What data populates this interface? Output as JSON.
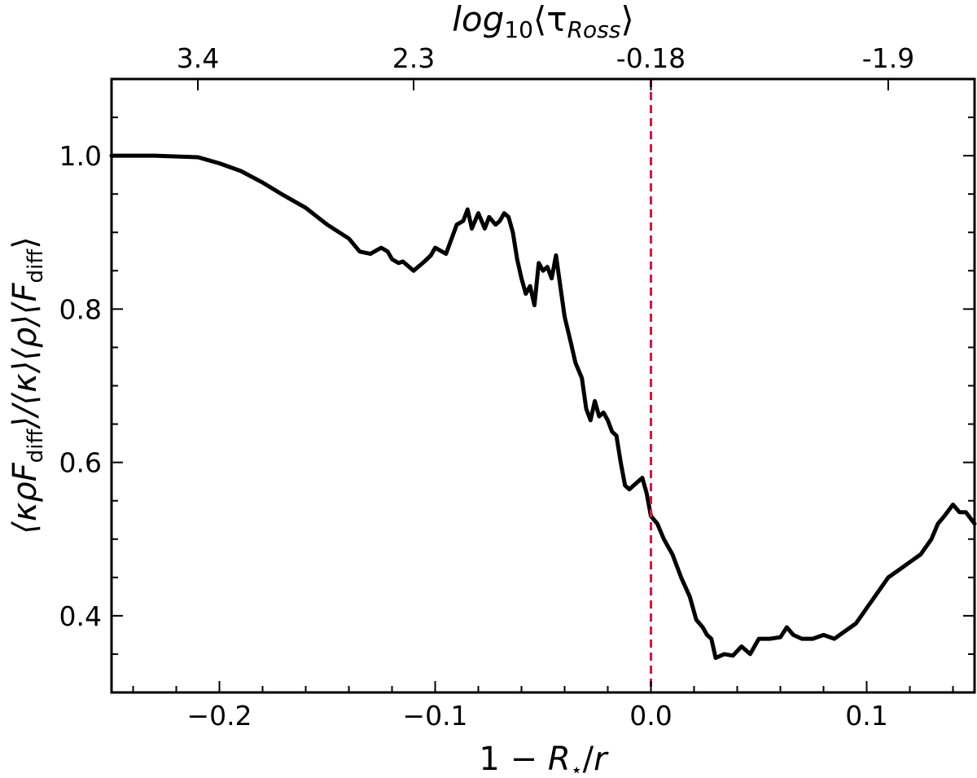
{
  "chart_data": {
    "type": "line",
    "xlabel": "1 − R⋆/r",
    "xlabel_parts": {
      "one": "1",
      "minus": "−",
      "r": "R",
      "star": "⋆",
      "slash": "/",
      "rr": "r"
    },
    "ylabel_parts": {
      "a": "⟨κρF",
      "b": "diff",
      "c": "⟩/⟨κ⟩⟨ρ⟩⟨F",
      "d": "diff",
      "e": "⟩"
    },
    "top_label_parts": {
      "a": "log",
      "b": "10",
      "c": "⟨τ",
      "d": "Ross",
      "e": "⟩"
    },
    "xlim": [
      -0.25,
      0.15
    ],
    "ylim": [
      0.3,
      1.1
    ],
    "x_ticks": [
      {
        "v": -0.2,
        "label": "−0.2"
      },
      {
        "v": -0.1,
        "label": "−0.1"
      },
      {
        "v": 0.0,
        "label": "0.0"
      },
      {
        "v": 0.1,
        "label": "0.1"
      }
    ],
    "y_ticks": [
      {
        "v": 0.4,
        "label": "0.4"
      },
      {
        "v": 0.6,
        "label": "0.6"
      },
      {
        "v": 0.8,
        "label": "0.8"
      },
      {
        "v": 1.0,
        "label": "1.0"
      }
    ],
    "top_ticks": [
      {
        "x": -0.21,
        "label": "3.4"
      },
      {
        "x": -0.11,
        "label": "2.3"
      },
      {
        "x": 0.0,
        "label": "-0.18"
      },
      {
        "x": 0.11,
        "label": "-1.9"
      }
    ],
    "vline": {
      "x": 0.0,
      "color": "#dc143c",
      "style": "dashed"
    },
    "line_color": "#000000",
    "series": [
      {
        "x": [
          -0.25,
          -0.23,
          -0.21,
          -0.2,
          -0.19,
          -0.18,
          -0.17,
          -0.16,
          -0.15,
          -0.14,
          -0.135,
          -0.13,
          -0.125,
          -0.122,
          -0.12,
          -0.117,
          -0.115,
          -0.11,
          -0.105,
          -0.102,
          -0.1,
          -0.095,
          -0.09,
          -0.087,
          -0.085,
          -0.083,
          -0.08,
          -0.077,
          -0.075,
          -0.072,
          -0.07,
          -0.068,
          -0.066,
          -0.064,
          -0.062,
          -0.06,
          -0.058,
          -0.056,
          -0.054,
          -0.052,
          -0.05,
          -0.048,
          -0.046,
          -0.044,
          -0.042,
          -0.04,
          -0.037,
          -0.035,
          -0.032,
          -0.03,
          -0.028,
          -0.026,
          -0.024,
          -0.022,
          -0.02,
          -0.018,
          -0.016,
          -0.014,
          -0.012,
          -0.01,
          -0.008,
          -0.006,
          -0.004,
          -0.002,
          0.0,
          0.003,
          0.006,
          0.01,
          0.014,
          0.018,
          0.021,
          0.024,
          0.026,
          0.028,
          0.03,
          0.034,
          0.038,
          0.042,
          0.046,
          0.05,
          0.055,
          0.06,
          0.063,
          0.066,
          0.07,
          0.075,
          0.08,
          0.085,
          0.09,
          0.095,
          0.1,
          0.105,
          0.11,
          0.115,
          0.12,
          0.125,
          0.13,
          0.133,
          0.136,
          0.14,
          0.143,
          0.146,
          0.15
        ],
        "y": [
          1.0,
          1.0,
          0.998,
          0.99,
          0.98,
          0.965,
          0.948,
          0.932,
          0.91,
          0.892,
          0.875,
          0.872,
          0.88,
          0.875,
          0.865,
          0.86,
          0.862,
          0.85,
          0.862,
          0.87,
          0.88,
          0.872,
          0.91,
          0.915,
          0.93,
          0.905,
          0.925,
          0.905,
          0.92,
          0.91,
          0.915,
          0.925,
          0.92,
          0.9,
          0.865,
          0.84,
          0.82,
          0.83,
          0.805,
          0.86,
          0.85,
          0.855,
          0.84,
          0.87,
          0.83,
          0.79,
          0.755,
          0.73,
          0.71,
          0.67,
          0.655,
          0.68,
          0.66,
          0.665,
          0.655,
          0.64,
          0.635,
          0.6,
          0.57,
          0.565,
          0.57,
          0.575,
          0.58,
          0.56,
          0.53,
          0.52,
          0.5,
          0.48,
          0.45,
          0.425,
          0.395,
          0.385,
          0.375,
          0.37,
          0.345,
          0.35,
          0.348,
          0.36,
          0.35,
          0.37,
          0.37,
          0.372,
          0.385,
          0.375,
          0.37,
          0.37,
          0.375,
          0.37,
          0.38,
          0.39,
          0.41,
          0.43,
          0.45,
          0.46,
          0.47,
          0.48,
          0.5,
          0.52,
          0.53,
          0.545,
          0.535,
          0.535,
          0.52
        ]
      }
    ]
  }
}
